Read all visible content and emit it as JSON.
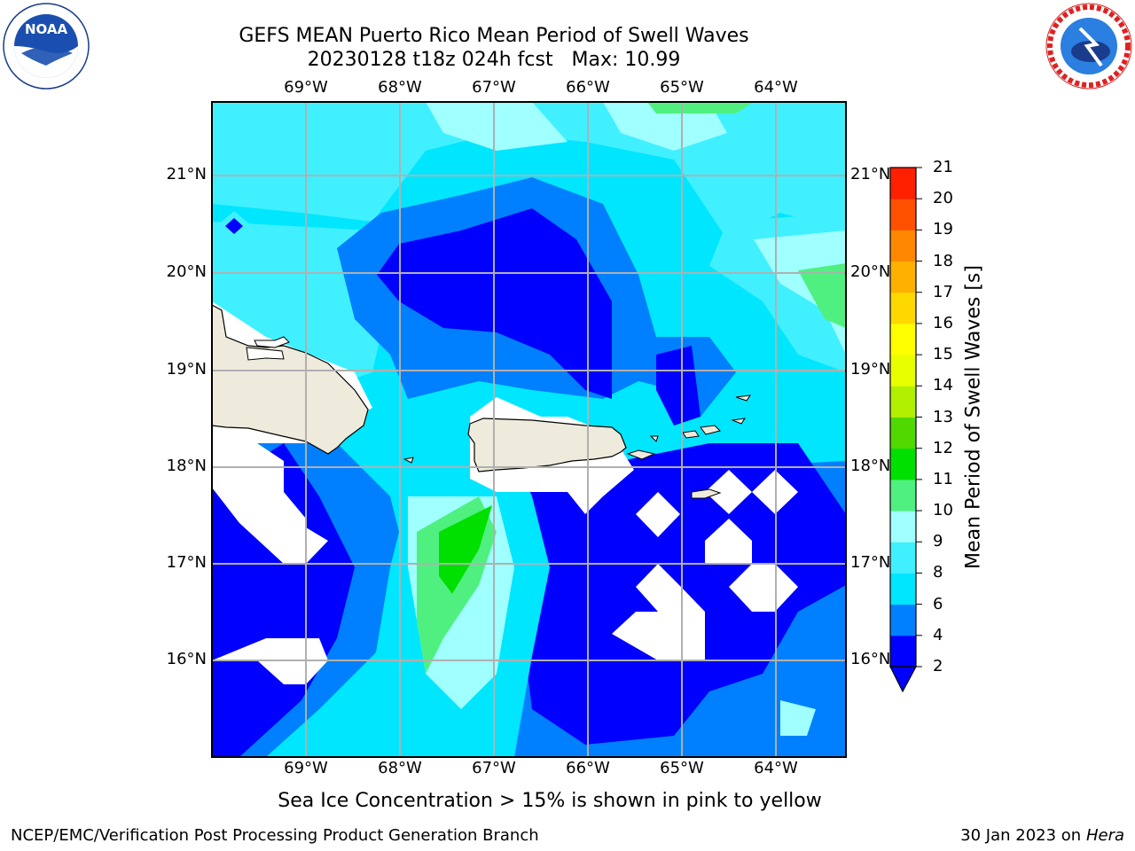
{
  "title_line1": "GEFS MEAN Puerto Rico Mean Period of Swell Waves",
  "title_line2": "20230128 t18z 024h fcst   Max: 10.99",
  "lon_ticks": [
    "69°W",
    "68°W",
    "67°W",
    "66°W",
    "65°W",
    "64°W"
  ],
  "lat_ticks": [
    "21°N",
    "20°N",
    "19°N",
    "18°N",
    "17°N",
    "16°N"
  ],
  "colorbar": {
    "label": "Mean Period of Swell Waves [s]",
    "levels": [
      "2",
      "4",
      "6",
      "8",
      "9",
      "10",
      "11",
      "12",
      "13",
      "14",
      "15",
      "16",
      "17",
      "18",
      "19",
      "20",
      "21"
    ],
    "colors": [
      "#0000ff",
      "#0080ff",
      "#00e6ff",
      "#40f0ff",
      "#a0ffff",
      "#50f080",
      "#00e000",
      "#50d800",
      "#b0f000",
      "#e8ff00",
      "#ffff00",
      "#ffd800",
      "#ffb000",
      "#ff8800",
      "#ff5000",
      "#ff2000"
    ]
  },
  "caption": "Sea Ice Concentration > 15% is shown in pink to yellow",
  "footer_left": "NCEP/EMC/Verification Post Processing Product Generation Branch",
  "footer_right_prefix": "30 Jan 2023 on ",
  "footer_right_host": "Hera",
  "logos": {
    "left": "NOAA",
    "right": "NATIONAL WEATHER SERVICE"
  },
  "colors": {
    "land": "#eeeadc",
    "grid": "#b0b0b0"
  }
}
